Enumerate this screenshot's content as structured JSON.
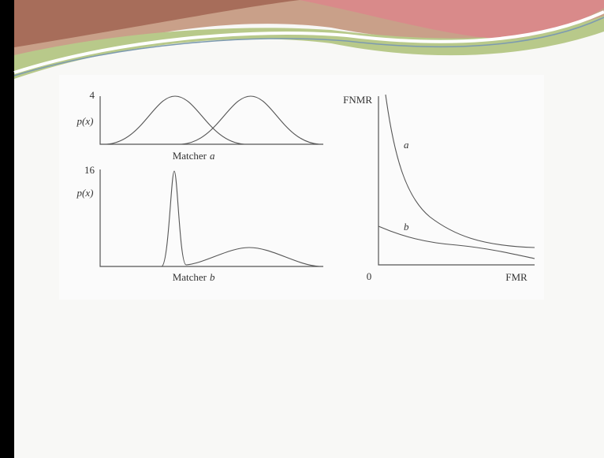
{
  "figure": {
    "matcher_a": {
      "y_max": "4",
      "y_label": "p(x)",
      "caption_prefix": "Matcher",
      "caption_var": "a"
    },
    "matcher_b": {
      "y_max": "16",
      "y_label": "p(x)",
      "caption_prefix": "Matcher",
      "caption_var": "b"
    },
    "roc": {
      "y_label": "FNMR",
      "x_label": "FMR",
      "origin": "0",
      "curve_a": "a",
      "curve_b": "b"
    }
  }
}
